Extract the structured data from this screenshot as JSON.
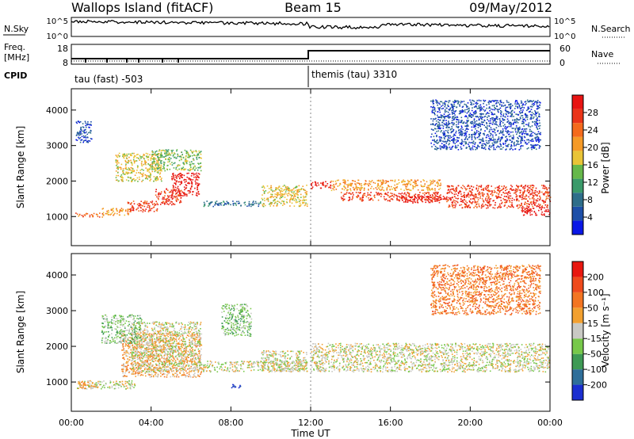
{
  "header": {
    "station": "Wallops Island (fitACF)",
    "beam": "Beam 15",
    "date": "09/May/2012"
  },
  "top_panels": {
    "nsky_label": "N.Sky",
    "nsky_ticks": [
      "10^5",
      "10^0"
    ],
    "nsearch_label": "N.Search",
    "nsearch_ticks": [
      "10^5",
      "10^0"
    ],
    "freq_label": "Freq.",
    "freq_unit": "[MHz]",
    "freq_ticks": [
      "18",
      "8"
    ],
    "nave_label": "Nave",
    "nave_ticks": [
      "60",
      "0"
    ],
    "cpid_label": "CPID",
    "cpid_segments": [
      "tau (fast) -503",
      "themis (tau) 3310"
    ]
  },
  "colorbars": {
    "power": {
      "label": "Power [dB]",
      "ticks": [
        "28",
        "24",
        "20",
        "16",
        "12",
        "8",
        "4"
      ],
      "colors": [
        "#0a17e6",
        "#1d4fa8",
        "#2e6e8a",
        "#3a9a6a",
        "#66b84a",
        "#e9c437",
        "#f59a27",
        "#f46a1c",
        "#ea3418",
        "#e81412"
      ]
    },
    "velocity": {
      "label": "Velocity [m s⁻¹]",
      "ticks": [
        "200",
        "100",
        "50",
        "15",
        "-15",
        "-50",
        "-100",
        "-200"
      ],
      "colors": [
        "#1b2fd0",
        "#2f6f9a",
        "#3e9a55",
        "#77c84a",
        "#c9c9c4",
        "#f2a030",
        "#f37522",
        "#ef4a1c",
        "#e8170f"
      ],
      "ground_scatter_color": "#c8c8c3"
    }
  },
  "chart_data": [
    {
      "type": "heatmap",
      "name": "power",
      "ylabel": "Slant Range [km]",
      "xlabel": "Time UT",
      "x_ticks": [
        "00:00",
        "04:00",
        "08:00",
        "12:00",
        "16:00",
        "20:00",
        "00:00"
      ],
      "y_ticks": [
        1000,
        2000,
        3000,
        4000
      ],
      "xlim_hours": [
        0,
        24
      ],
      "ylim_km": [
        180,
        4600
      ],
      "bands_hours_km": [
        {
          "x0": 0.2,
          "x1": 1.6,
          "y0": 1000,
          "y1": 1120,
          "level": 7
        },
        {
          "x0": 1.5,
          "x1": 3.0,
          "y0": 1050,
          "y1": 1250,
          "level": 6
        },
        {
          "x0": 2.8,
          "x1": 4.3,
          "y0": 1150,
          "y1": 1450,
          "level": 8
        },
        {
          "x0": 4.2,
          "x1": 5.5,
          "y0": 1350,
          "y1": 1800,
          "level": 8
        },
        {
          "x0": 5.0,
          "x1": 6.4,
          "y0": 1600,
          "y1": 2250,
          "level": 9
        },
        {
          "x0": 2.2,
          "x1": 4.5,
          "y0": 2000,
          "y1": 2800,
          "level": 5
        },
        {
          "x0": 4.0,
          "x1": 6.5,
          "y0": 2300,
          "y1": 2900,
          "level": 4
        },
        {
          "x0": 6.5,
          "x1": 9.5,
          "y0": 1300,
          "y1": 1450,
          "level": 2
        },
        {
          "x0": 9.5,
          "x1": 11.8,
          "y0": 1300,
          "y1": 1900,
          "level": 5
        },
        {
          "x0": 12.0,
          "x1": 13.0,
          "y0": 1800,
          "y1": 2000,
          "level": 9
        },
        {
          "x0": 13.0,
          "x1": 18.5,
          "y0": 1750,
          "y1": 2050,
          "level": 6
        },
        {
          "x0": 13.5,
          "x1": 18.5,
          "y0": 1450,
          "y1": 1700,
          "level": 8
        },
        {
          "x0": 16.5,
          "x1": 18.8,
          "y0": 1400,
          "y1": 1600,
          "level": 9
        },
        {
          "x0": 18.8,
          "x1": 24.0,
          "y0": 1250,
          "y1": 1900,
          "level": 8
        },
        {
          "x0": 22.5,
          "x1": 24.0,
          "y0": 1050,
          "y1": 1300,
          "level": 9
        },
        {
          "x0": 0.2,
          "x1": 1.0,
          "y0": 3100,
          "y1": 3700,
          "level": 1
        },
        {
          "x0": 18.0,
          "x1": 23.5,
          "y0": 2900,
          "y1": 4300,
          "level": 1
        }
      ]
    },
    {
      "type": "heatmap",
      "name": "velocity",
      "ylabel": "Slant Range [km]",
      "xlabel": "Time UT",
      "x_ticks": [
        "00:00",
        "04:00",
        "08:00",
        "12:00",
        "16:00",
        "20:00",
        "00:00"
      ],
      "y_ticks": [
        1000,
        2000,
        3000,
        4000
      ],
      "xlim_hours": [
        0,
        24
      ],
      "ylim_km": [
        180,
        4600
      ],
      "bands_hours_km": [
        {
          "x0": 0.2,
          "x1": 3.2,
          "y0": 820,
          "y1": 1050,
          "level": 4
        },
        {
          "x0": 0.3,
          "x1": 1.2,
          "y0": 800,
          "y1": 1050,
          "level": 5
        },
        {
          "x0": 2.5,
          "x1": 6.5,
          "y0": 1150,
          "y1": 2400,
          "level": 5
        },
        {
          "x0": 3.0,
          "x1": 6.5,
          "y0": 1300,
          "y1": 2700,
          "level": 4
        },
        {
          "x0": 1.5,
          "x1": 3.5,
          "y0": 2100,
          "y1": 2900,
          "level": 3
        },
        {
          "x0": 6.5,
          "x1": 11.8,
          "y0": 1300,
          "y1": 1600,
          "level": 4
        },
        {
          "x0": 9.5,
          "x1": 11.8,
          "y0": 1300,
          "y1": 1900,
          "level": 4
        },
        {
          "x0": 7.5,
          "x1": 9.0,
          "y0": 2300,
          "y1": 3200,
          "level": 3
        },
        {
          "x0": 8.0,
          "x1": 8.5,
          "y0": 850,
          "y1": 950,
          "level": 0
        },
        {
          "x0": 12.0,
          "x1": 24.0,
          "y0": 1300,
          "y1": 2100,
          "level": 4
        },
        {
          "x0": 18.0,
          "x1": 23.5,
          "y0": 2900,
          "y1": 4300,
          "level": 6
        }
      ]
    }
  ]
}
